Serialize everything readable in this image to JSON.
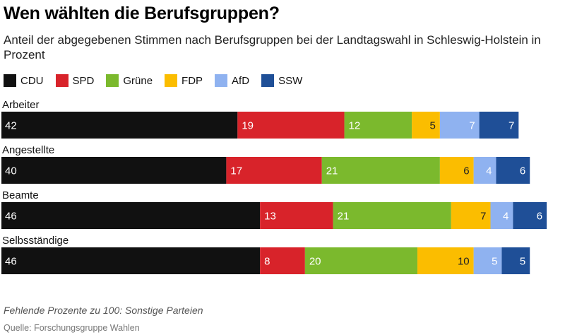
{
  "title": "Wen wählten die Berufsgruppen?",
  "subtitle": "Anteil der abgegebenen Stimmen nach Berufsgruppen bei der Landtagswahl in Schleswig-Holstein in Prozent",
  "note": "Fehlende Prozente zu 100: Sonstige Parteien",
  "source": "Quelle: Forschungsgruppe Wahlen",
  "chart_data": {
    "type": "bar",
    "orientation": "horizontal",
    "stacked": true,
    "categories": [
      "Arbeiter",
      "Angestellte",
      "Beamte",
      "Selbsständige"
    ],
    "series": [
      {
        "name": "CDU",
        "color": "#111111",
        "label_color": "#ffffff",
        "values": [
          42,
          40,
          46,
          46
        ]
      },
      {
        "name": "SPD",
        "color": "#d8232a",
        "label_color": "#ffffff",
        "values": [
          19,
          17,
          13,
          8
        ]
      },
      {
        "name": "Grüne",
        "color": "#7bb92d",
        "label_color": "#ffffff",
        "values": [
          12,
          21,
          21,
          20
        ]
      },
      {
        "name": "FDP",
        "color": "#fbbd00",
        "label_color": "#222222",
        "values": [
          5,
          6,
          7,
          10
        ]
      },
      {
        "name": "AfD",
        "color": "#8fb2f0",
        "label_color": "#ffffff",
        "values": [
          7,
          4,
          4,
          5
        ]
      },
      {
        "name": "SSW",
        "color": "#1f4f97",
        "label_color": "#ffffff",
        "values": [
          7,
          6,
          6,
          5
        ]
      }
    ],
    "xlim": [
      0,
      100
    ],
    "legend_position": "top-left",
    "grid": false
  }
}
